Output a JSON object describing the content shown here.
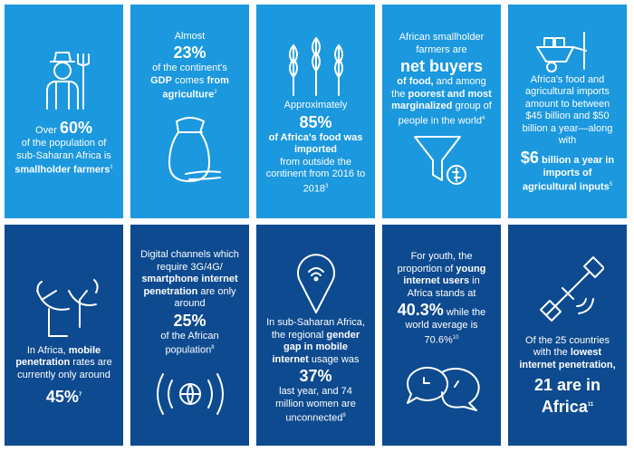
{
  "tiles": [
    {
      "runs": [
        "Over ",
        "60%",
        "of the population of sub-Saharan Africa is",
        "smallholder farmers",
        "1"
      ]
    },
    {
      "runs": [
        "Almost",
        "23%",
        "of the continent's",
        "GDP",
        " comes ",
        "from agriculture",
        "2"
      ]
    },
    {
      "runs": [
        "Approximately",
        "85%",
        "of Africa's food was imported",
        "from outside the continent from 2016 to 2018",
        "3"
      ]
    },
    {
      "runs": [
        "African smallholder farmers are",
        "net buyers",
        "of food,",
        " and among the ",
        "poorest and most marginalized",
        " group of people in the world",
        "4"
      ]
    },
    {
      "runs": [
        "Africa's food and agricultural imports amount to between $45 billion and $50 billion a year—along with",
        "$6",
        " billion a year in imports of agricultural inputs",
        "5"
      ]
    },
    {
      "runs": [
        "In Africa, ",
        "mobile penetration",
        " rates are currently only around",
        "45%",
        "7"
      ]
    },
    {
      "runs": [
        "Digital channels which require 3G/4G/",
        "smartphone internet penetration",
        " are only around",
        "25%",
        "of the African population",
        "8"
      ]
    },
    {
      "runs": [
        "In sub-Saharan Africa, the regional ",
        "gender gap in mobile internet",
        " usage was",
        "37%",
        "last year, and 74 million women are unconnected",
        "9"
      ]
    },
    {
      "runs": [
        "For youth, the proportion of ",
        "young internet users",
        " in Africa stands at",
        "40.3%",
        " while the world average is 70.6%",
        "10"
      ]
    },
    {
      "runs": [
        "Of the 25 countries with the ",
        "lowest internet penetration,",
        "21 are in Africa",
        "11"
      ]
    }
  ]
}
